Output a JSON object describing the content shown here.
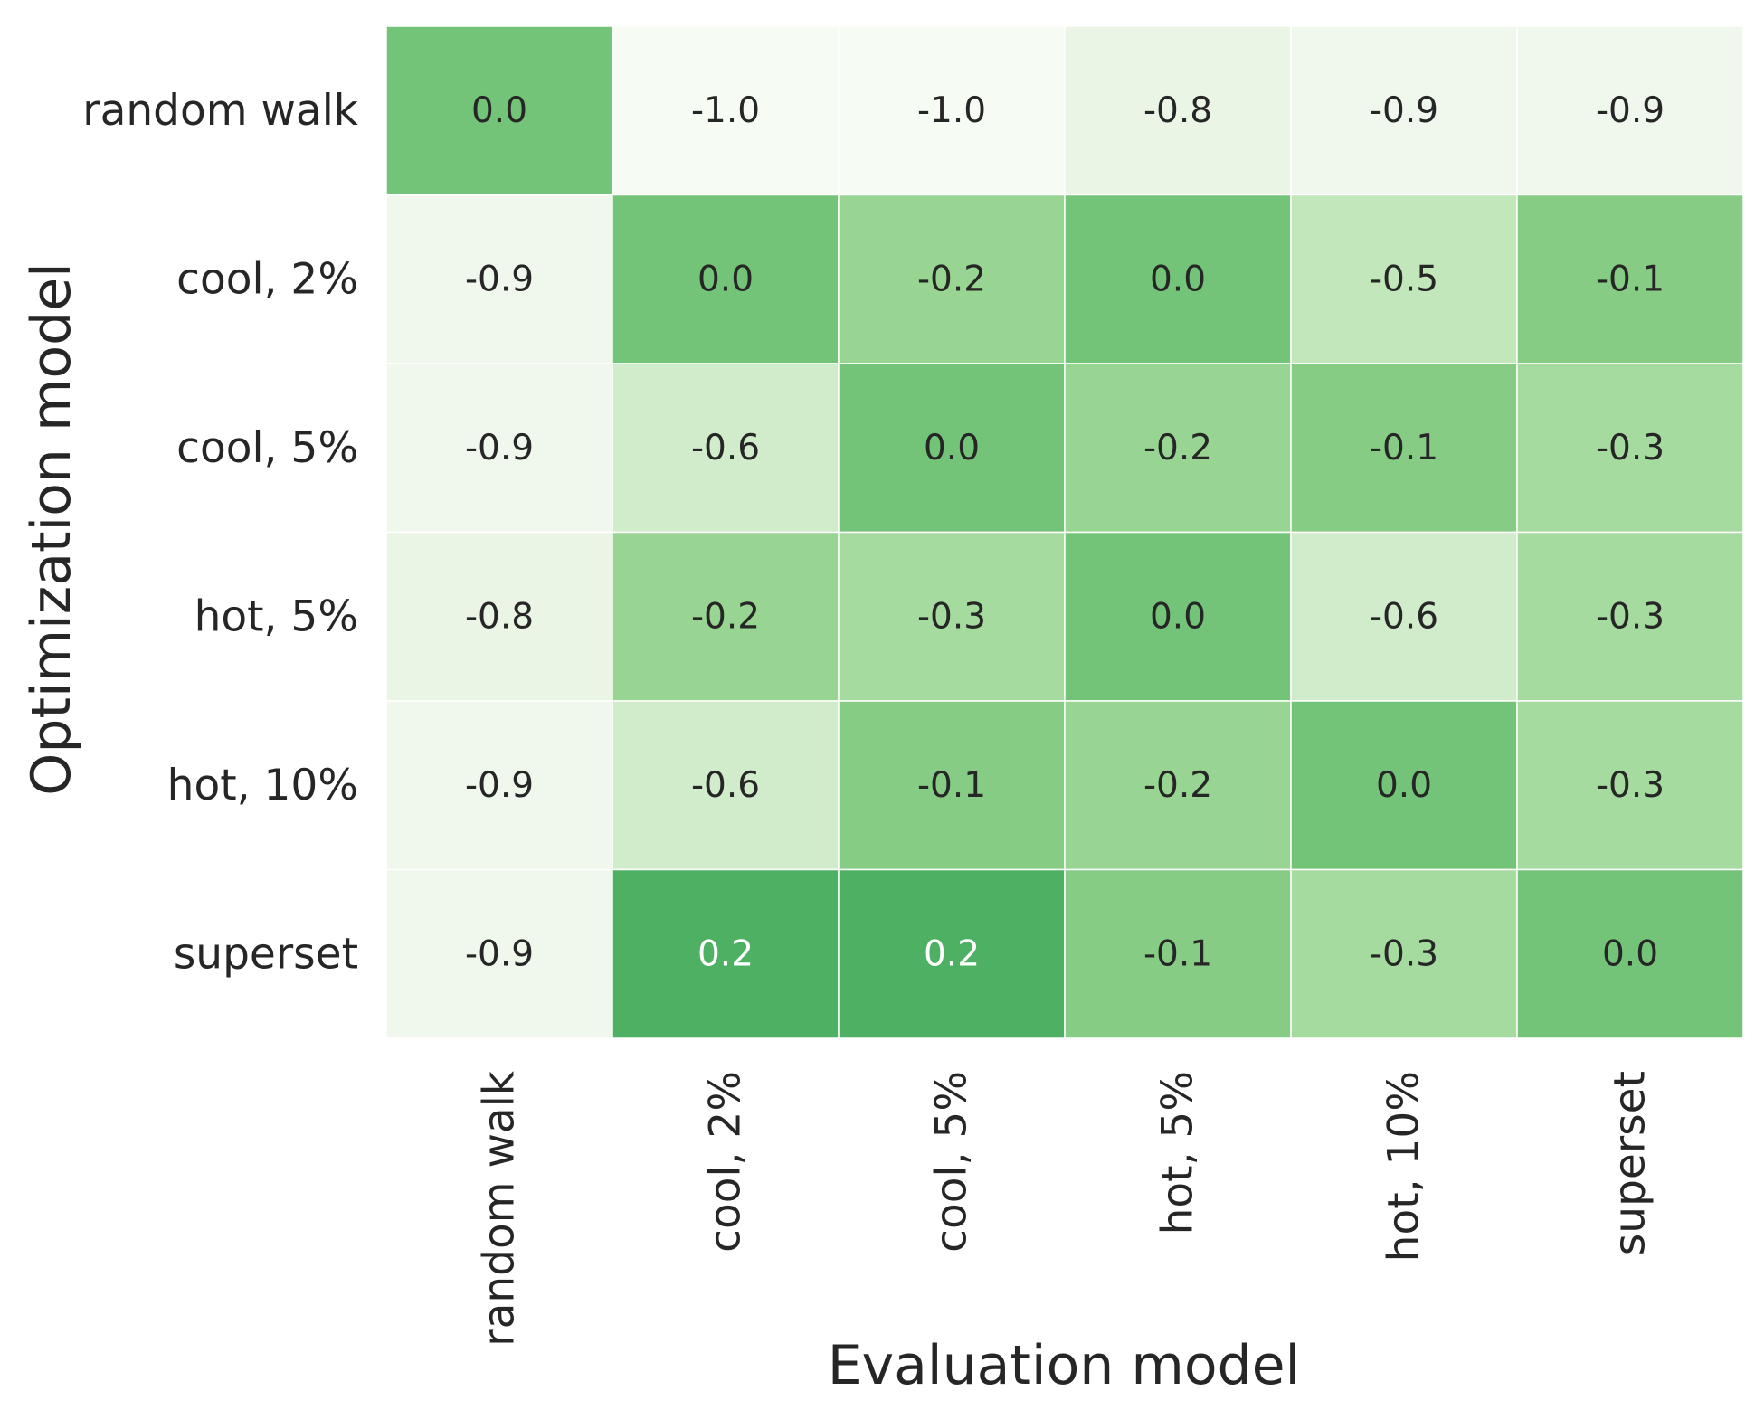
{
  "chart_data": {
    "type": "heatmap",
    "title": "",
    "xlabel": "Evaluation model",
    "ylabel": "Optimization model",
    "x_categories": [
      "random walk",
      "cool, 2%",
      "cool, 5%",
      "hot, 5%",
      "hot, 10%",
      "superset"
    ],
    "y_categories": [
      "random walk",
      "cool, 2%",
      "cool, 5%",
      "hot, 5%",
      "hot, 10%",
      "superset"
    ],
    "values": [
      [
        0.0,
        -1.0,
        -1.0,
        -0.8,
        -0.9,
        -0.9
      ],
      [
        -0.9,
        0.0,
        -0.2,
        0.0,
        -0.5,
        -0.1
      ],
      [
        -0.9,
        -0.6,
        0.0,
        -0.2,
        -0.1,
        -0.3
      ],
      [
        -0.8,
        -0.2,
        -0.3,
        0.0,
        -0.6,
        -0.3
      ],
      [
        -0.9,
        -0.6,
        -0.1,
        -0.2,
        0.0,
        -0.3
      ],
      [
        -0.9,
        0.2,
        0.2,
        -0.1,
        -0.3,
        0.0
      ]
    ],
    "cell_labels": [
      [
        "0.0",
        "-1.0",
        "-1.0",
        "-0.8",
        "-0.9",
        "-0.9"
      ],
      [
        "-0.9",
        "0.0",
        "-0.2",
        "0.0",
        "-0.5",
        "-0.1"
      ],
      [
        "-0.9",
        "-0.6",
        "0.0",
        "-0.2",
        "-0.1",
        "-0.3"
      ],
      [
        "-0.8",
        "-0.2",
        "-0.3",
        "0.0",
        "-0.6",
        "-0.3"
      ],
      [
        "-0.9",
        "-0.6",
        "-0.1",
        "-0.2",
        "0.0",
        "-0.3"
      ],
      [
        "-0.9",
        "0.2",
        "0.2",
        "-0.1",
        "-0.3",
        "0.0"
      ]
    ],
    "colorscale": "Greens",
    "grid": false,
    "colorbar": false
  }
}
